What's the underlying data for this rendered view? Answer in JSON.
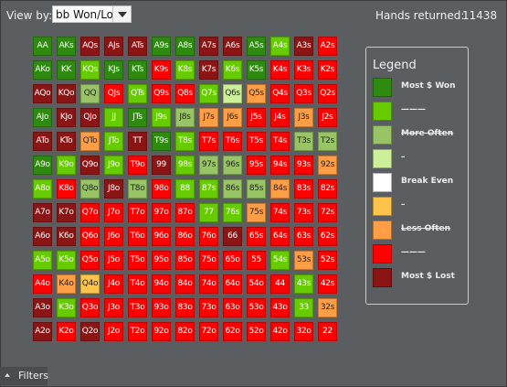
{
  "toolbar": {
    "view_by_label": "View by:",
    "view_by_value": "bb Won/Lost",
    "hands_label": "Hands returned:",
    "hands_value": "11438"
  },
  "colors": {
    "dg": "#2e8b10",
    "lg": "#66cc00",
    "mg": "#99c466",
    "pg": "#ccf099",
    "wh": "#ffffff",
    "yl": "#ffc44a",
    "or": "#ff9e44",
    "rd": "#ff0000",
    "dr": "#8b1414"
  },
  "grid": {
    "rows": [
      {
        "cells": [
          "AA",
          "AKs",
          "AQs",
          "AJs",
          "ATs",
          "A9s",
          "A8s",
          "A7s",
          "A6s",
          "A5s",
          "A4s",
          "A3s",
          "A2s"
        ],
        "colors": [
          "dg",
          "dg",
          "dr",
          "dr",
          "dr",
          "dg",
          "dg",
          "dr",
          "dr",
          "dg",
          "lg",
          "dr",
          "rd"
        ]
      },
      {
        "cells": [
          "AKo",
          "KK",
          "KQs",
          "KJs",
          "KTs",
          "K9s",
          "K8s",
          "K7s",
          "K6s",
          "K5s",
          "K4s",
          "K3s",
          "K2s"
        ],
        "colors": [
          "dg",
          "dg",
          "lg",
          "dg",
          "dg",
          "rd",
          "lg",
          "dr",
          "lg",
          "dg",
          "rd",
          "rd",
          "rd"
        ]
      },
      {
        "cells": [
          "AQo",
          "KQo",
          "QQ",
          "QJs",
          "QTs",
          "Q9s",
          "Q8s",
          "Q7s",
          "Q6s",
          "Q5s",
          "Q4s",
          "Q3s",
          "Q2s"
        ],
        "colors": [
          "dr",
          "dr",
          "mg",
          "rd",
          "lg",
          "rd",
          "rd",
          "lg",
          "pg",
          "or",
          "rd",
          "rd",
          "rd"
        ]
      },
      {
        "cells": [
          "AJo",
          "KJo",
          "QJo",
          "JJ",
          "JTs",
          "J9s",
          "J8s",
          "J7s",
          "J6s",
          "J5s",
          "J4s",
          "J3s",
          "J2s"
        ],
        "colors": [
          "dg",
          "dr",
          "dr",
          "lg",
          "dg",
          "lg",
          "mg",
          "or",
          "or",
          "rd",
          "rd",
          "or",
          "rd"
        ]
      },
      {
        "cells": [
          "ATo",
          "KTo",
          "QTo",
          "JTo",
          "TT",
          "T9s",
          "T8s",
          "T7s",
          "T6s",
          "T5s",
          "T4s",
          "T3s",
          "T2s"
        ],
        "colors": [
          "dr",
          "dr",
          "or",
          "lg",
          "dr",
          "dg",
          "lg",
          "rd",
          "rd",
          "rd",
          "rd",
          "mg",
          "mg"
        ]
      },
      {
        "cells": [
          "A9o",
          "K9o",
          "Q9o",
          "J9o",
          "T9o",
          "99",
          "98s",
          "97s",
          "96s",
          "95s",
          "94s",
          "93s",
          "92s"
        ],
        "colors": [
          "dg",
          "lg",
          "dr",
          "lg",
          "rd",
          "dr",
          "lg",
          "mg",
          "mg",
          "rd",
          "rd",
          "rd",
          "or"
        ]
      },
      {
        "cells": [
          "A8o",
          "K8o",
          "Q8o",
          "J8o",
          "T8o",
          "98o",
          "88",
          "87s",
          "86s",
          "85s",
          "84s",
          "83s",
          "82s"
        ],
        "colors": [
          "lg",
          "rd",
          "mg",
          "dr",
          "mg",
          "rd",
          "lg",
          "lg",
          "mg",
          "mg",
          "or",
          "rd",
          "rd"
        ]
      },
      {
        "cells": [
          "A7o",
          "K7o",
          "Q7o",
          "J7o",
          "T7o",
          "97o",
          "87o",
          "77",
          "76s",
          "75s",
          "74s",
          "73s",
          "72s"
        ],
        "colors": [
          "dr",
          "dr",
          "rd",
          "rd",
          "rd",
          "rd",
          "rd",
          "lg",
          "lg",
          "or",
          "rd",
          "rd",
          "rd"
        ]
      },
      {
        "cells": [
          "A6o",
          "K6o",
          "Q6o",
          "J6o",
          "T6o",
          "96o",
          "86o",
          "76o",
          "66",
          "65s",
          "64s",
          "63s",
          "62s"
        ],
        "colors": [
          "dr",
          "dr",
          "rd",
          "rd",
          "rd",
          "rd",
          "rd",
          "rd",
          "dr",
          "rd",
          "rd",
          "rd",
          "rd"
        ]
      },
      {
        "cells": [
          "A5o",
          "K5o",
          "Q5o",
          "J5o",
          "T5o",
          "95o",
          "85o",
          "75o",
          "65o",
          "55",
          "54s",
          "53s",
          "52s"
        ],
        "colors": [
          "lg",
          "lg",
          "rd",
          "rd",
          "rd",
          "rd",
          "rd",
          "rd",
          "rd",
          "rd",
          "lg",
          "or",
          "rd"
        ]
      },
      {
        "cells": [
          "A4o",
          "K4o",
          "Q4o",
          "J4o",
          "T4o",
          "94o",
          "84o",
          "74o",
          "64o",
          "54o",
          "44",
          "43s",
          "42s"
        ],
        "colors": [
          "rd",
          "or",
          "yl",
          "rd",
          "rd",
          "rd",
          "rd",
          "rd",
          "rd",
          "rd",
          "rd",
          "lg",
          "rd"
        ]
      },
      {
        "cells": [
          "A3o",
          "K3o",
          "Q3o",
          "J3o",
          "T3o",
          "93o",
          "83o",
          "73o",
          "63o",
          "53o",
          "43o",
          "33",
          "32s"
        ],
        "colors": [
          "dr",
          "lg",
          "rd",
          "rd",
          "rd",
          "rd",
          "rd",
          "rd",
          "rd",
          "rd",
          "rd",
          "lg",
          "or"
        ]
      },
      {
        "cells": [
          "A2o",
          "K2o",
          "Q2o",
          "J2o",
          "T2o",
          "92o",
          "82o",
          "72o",
          "62o",
          "52o",
          "42o",
          "32o",
          "22"
        ],
        "colors": [
          "dr",
          "rd",
          "dr",
          "rd",
          "rd",
          "rd",
          "rd",
          "rd",
          "rd",
          "rd",
          "rd",
          "rd",
          "rd"
        ]
      }
    ]
  },
  "legend": {
    "title": "Legend",
    "items": [
      {
        "label": "Most $ Won",
        "color": "dg",
        "strike": false
      },
      {
        "label": "———",
        "color": "lg",
        "strike": false
      },
      {
        "label": "More Often",
        "color": "mg",
        "strike": true
      },
      {
        "label": "–",
        "color": "pg",
        "strike": false
      },
      {
        "label": "Break Even",
        "color": "wh",
        "strike": false
      },
      {
        "label": "–",
        "color": "yl",
        "strike": false
      },
      {
        "label": "Less Often",
        "color": "or",
        "strike": true
      },
      {
        "label": "———",
        "color": "rd",
        "strike": false
      },
      {
        "label": "Most $ Lost",
        "color": "dr",
        "strike": false
      }
    ]
  },
  "filters": {
    "label": "Filters",
    "icon": "chevron-up-icon"
  }
}
